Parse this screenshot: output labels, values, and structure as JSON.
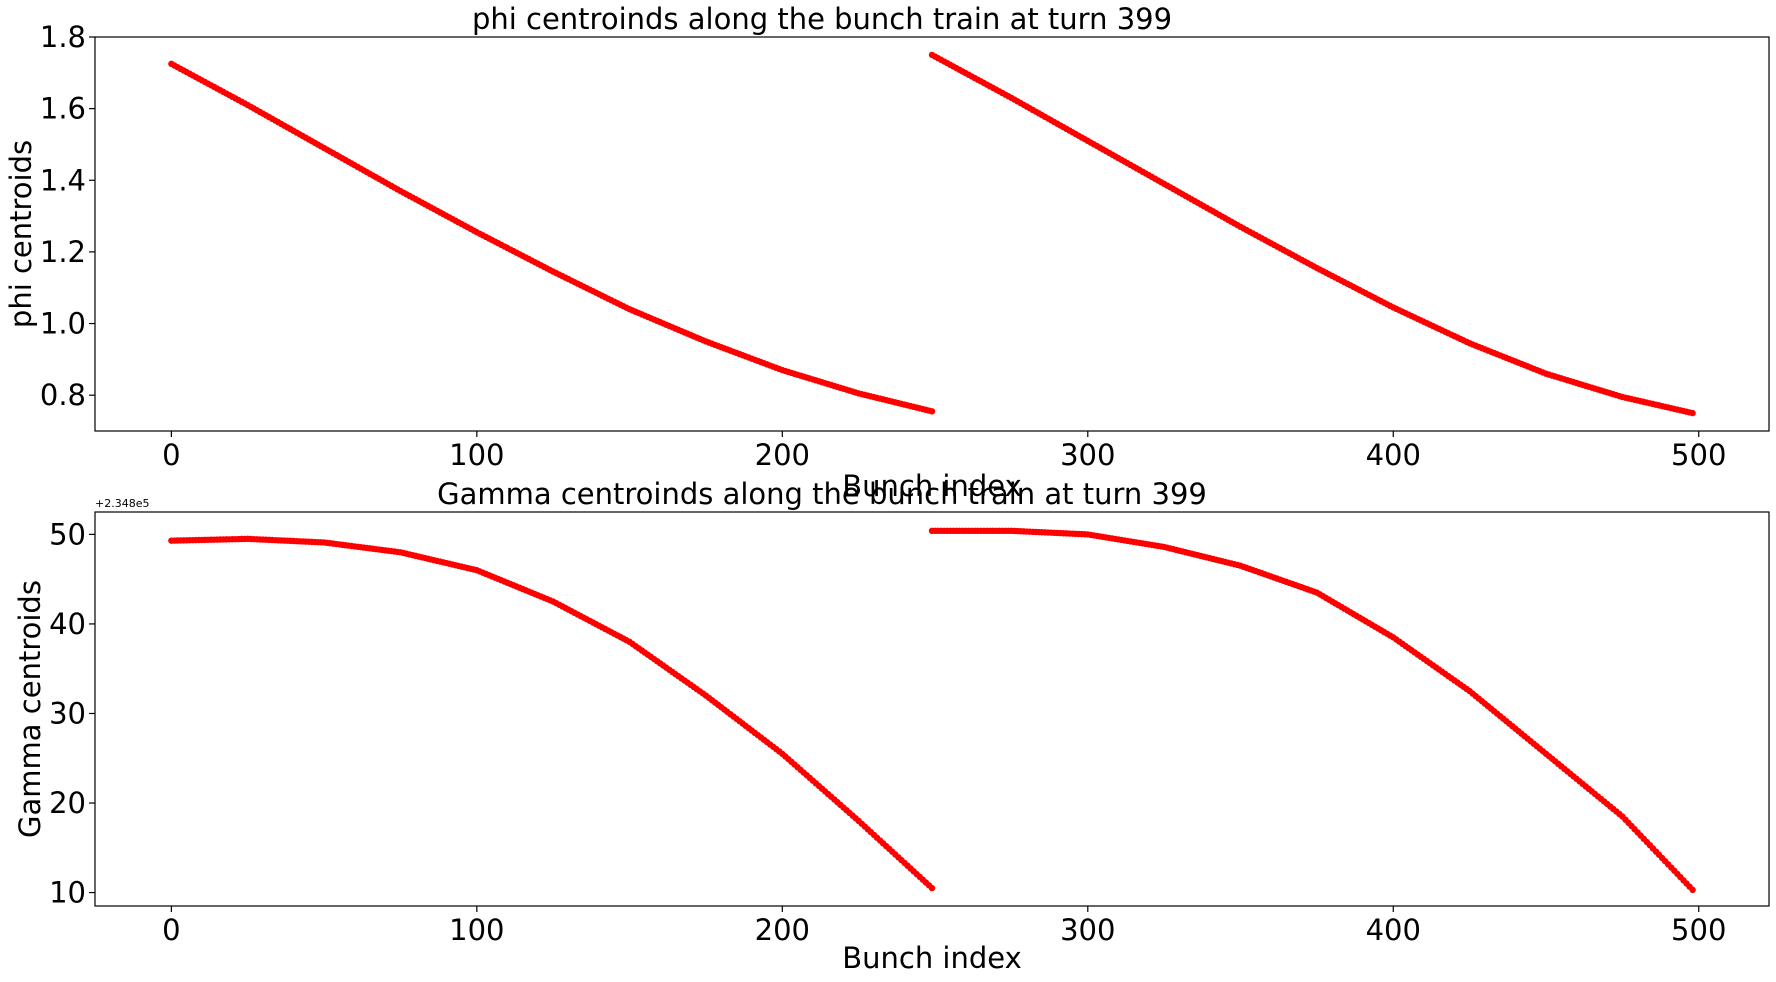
{
  "chart_data": [
    {
      "type": "scatter",
      "title": "phi centroinds along the bunch train at turn 399",
      "xlabel": "Bunch index",
      "ylabel": "phi centroids",
      "xlim": [
        -25,
        523
      ],
      "ylim": [
        0.7,
        1.8
      ],
      "xticks": [
        0,
        100,
        200,
        300,
        400,
        500
      ],
      "xtick_labels": [
        "0",
        "100",
        "200",
        "300",
        "400",
        "500"
      ],
      "yticks": [
        0.8,
        1.0,
        1.2,
        1.4,
        1.6,
        1.8
      ],
      "ytick_labels": [
        "0.8",
        "1.0",
        "1.2",
        "1.4",
        "1.6",
        "1.8"
      ],
      "offset_text": "",
      "grid": false,
      "color": "#ff0000",
      "series": [
        {
          "x": [
            0,
            25,
            50,
            75,
            100,
            125,
            150,
            175,
            200,
            225,
            249
          ],
          "values": [
            1.725,
            1.61,
            1.49,
            1.37,
            1.255,
            1.145,
            1.04,
            0.95,
            0.87,
            0.805,
            0.755
          ]
        },
        {
          "x": [
            249,
            275,
            300,
            325,
            350,
            375,
            400,
            425,
            450,
            475,
            498
          ],
          "values": [
            1.75,
            1.63,
            1.51,
            1.39,
            1.27,
            1.155,
            1.045,
            0.945,
            0.86,
            0.795,
            0.75
          ]
        }
      ]
    },
    {
      "type": "scatter",
      "title": "Gamma centroinds along the bunch train at turn 399",
      "xlabel": "Bunch index",
      "ylabel": "Gamma centroids",
      "xlim": [
        -25,
        523
      ],
      "ylim": [
        8.5,
        52.5
      ],
      "xticks": [
        0,
        100,
        200,
        300,
        400,
        500
      ],
      "xtick_labels": [
        "0",
        "100",
        "200",
        "300",
        "400",
        "500"
      ],
      "yticks": [
        10,
        20,
        30,
        40,
        50
      ],
      "ytick_labels": [
        "10",
        "20",
        "30",
        "40",
        "50"
      ],
      "offset_text": "+2.348e5",
      "grid": false,
      "color": "#ff0000",
      "series": [
        {
          "x": [
            0,
            25,
            50,
            75,
            100,
            125,
            150,
            175,
            200,
            225,
            249
          ],
          "values": [
            49.3,
            49.5,
            49.1,
            48.0,
            46.0,
            42.5,
            38.0,
            32.0,
            25.5,
            18.0,
            10.5
          ]
        },
        {
          "x": [
            249,
            275,
            300,
            325,
            350,
            375,
            400,
            425,
            450,
            475,
            498
          ],
          "values": [
            50.4,
            50.4,
            50.0,
            48.6,
            46.5,
            43.5,
            38.5,
            32.5,
            25.5,
            18.5,
            10.3
          ]
        }
      ]
    }
  ]
}
